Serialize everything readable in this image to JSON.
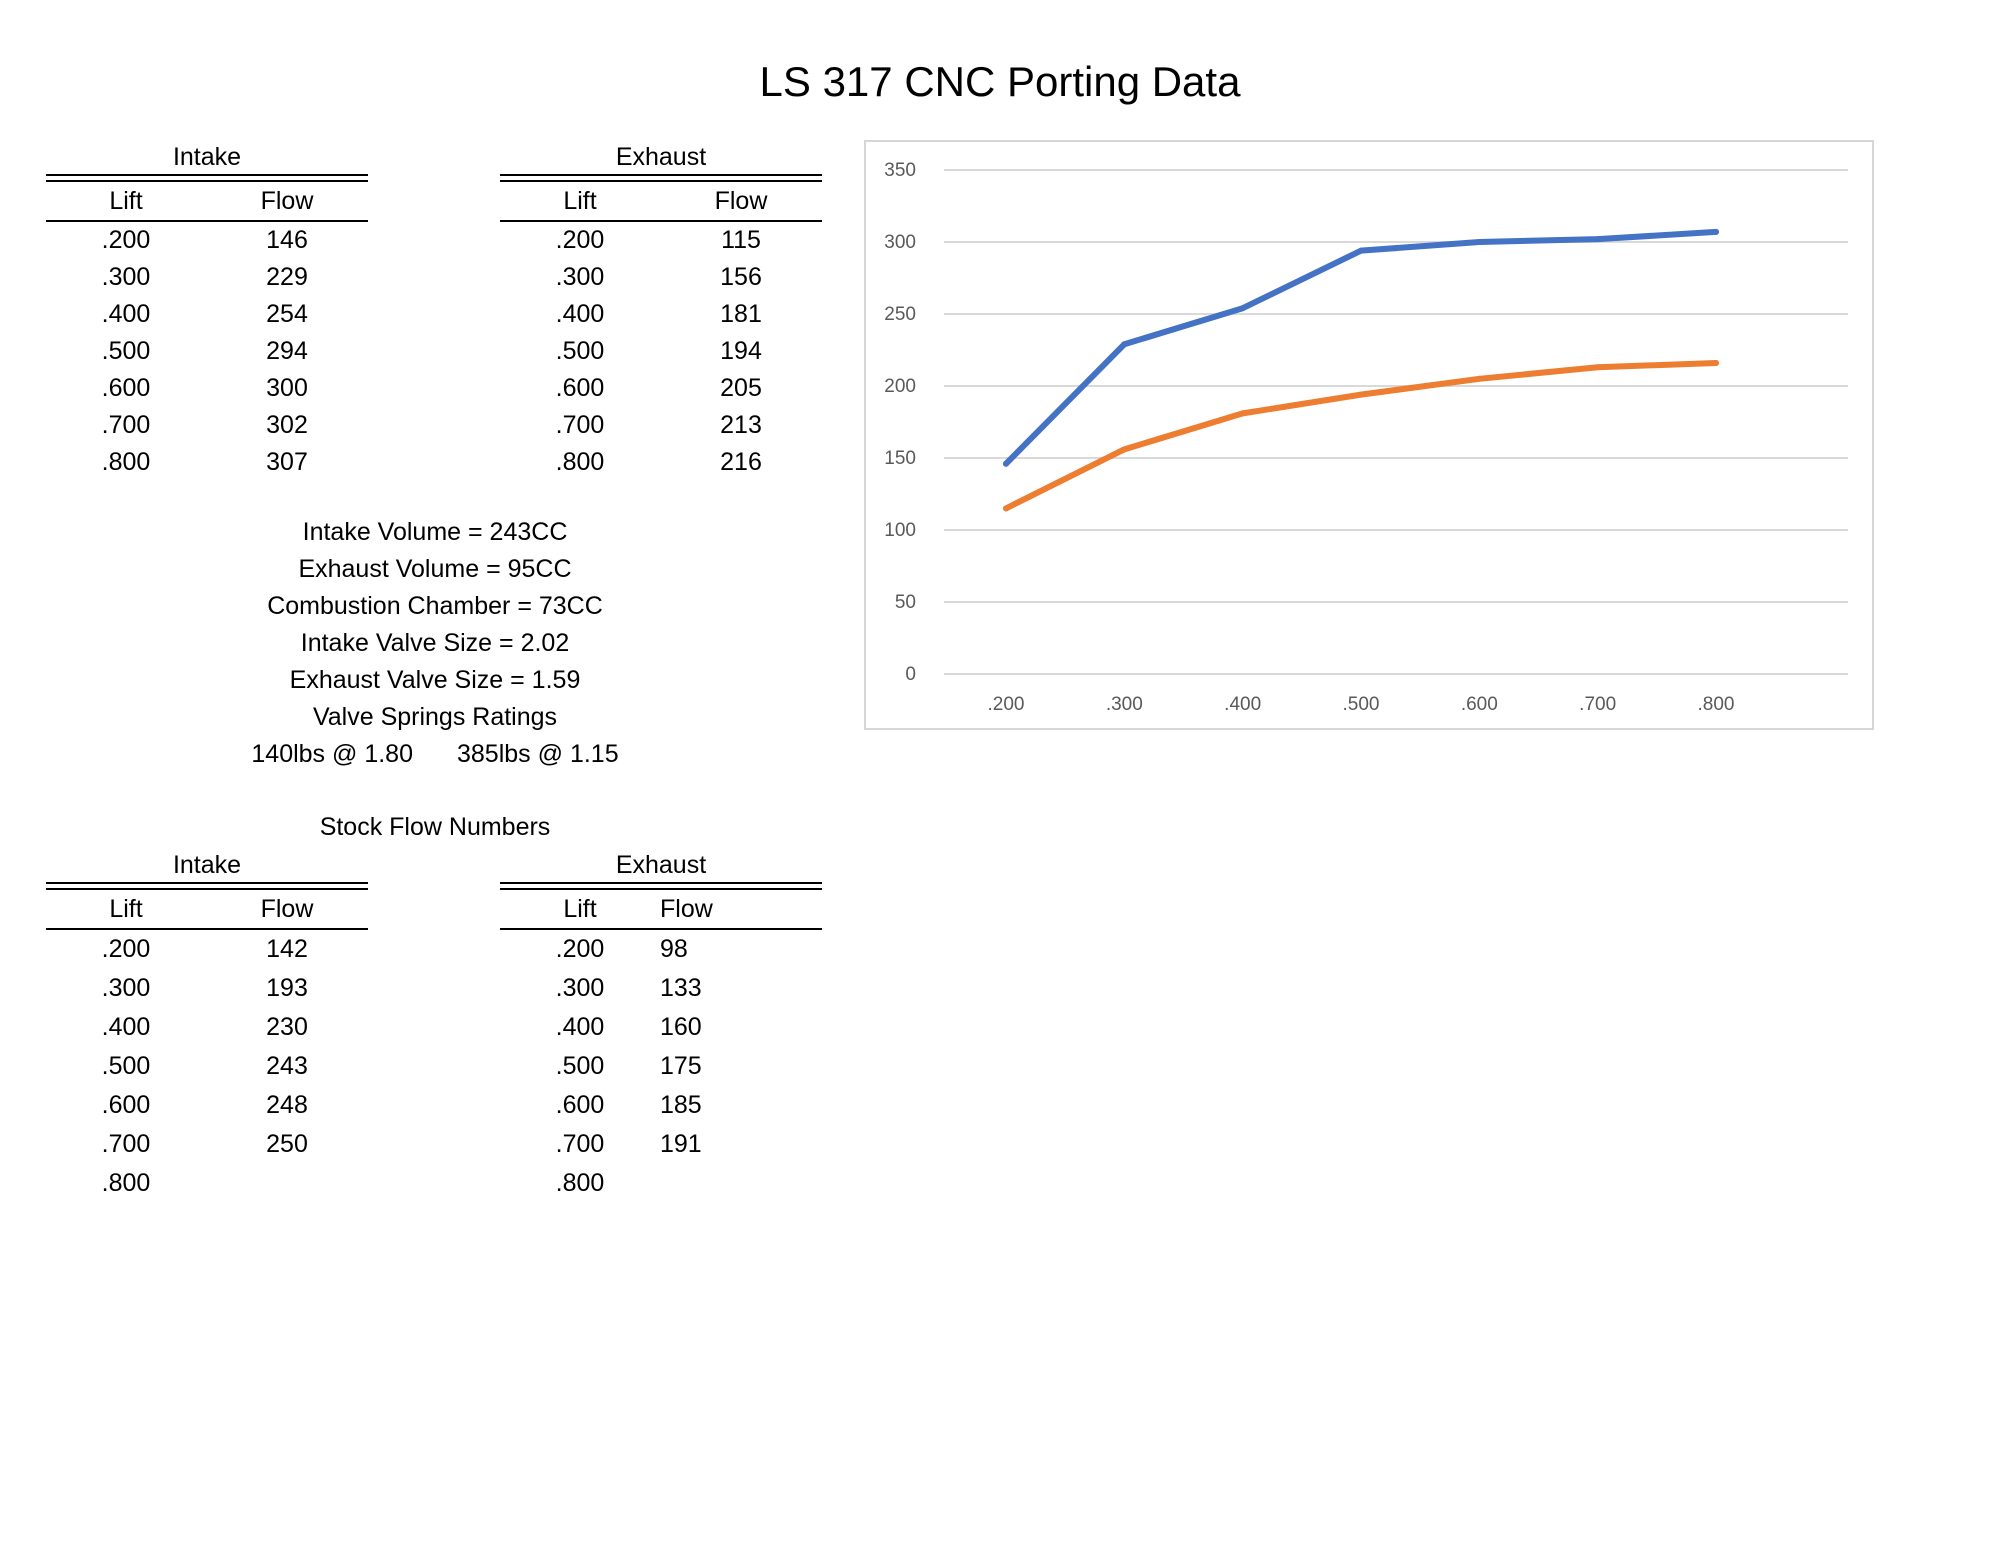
{
  "title": "LS 317 CNC Porting Data",
  "ported": {
    "intake": {
      "caption": "Intake",
      "headers": [
        "Lift",
        "Flow"
      ],
      "rows": [
        [
          ".200",
          "146"
        ],
        [
          ".300",
          "229"
        ],
        [
          ".400",
          "254"
        ],
        [
          ".500",
          "294"
        ],
        [
          ".600",
          "300"
        ],
        [
          ".700",
          "302"
        ],
        [
          ".800",
          "307"
        ]
      ]
    },
    "exhaust": {
      "caption": "Exhaust",
      "headers": [
        "Lift",
        "Flow"
      ],
      "rows": [
        [
          ".200",
          "115"
        ],
        [
          ".300",
          "156"
        ],
        [
          ".400",
          "181"
        ],
        [
          ".500",
          "194"
        ],
        [
          ".600",
          "205"
        ],
        [
          ".700",
          "213"
        ],
        [
          ".800",
          "216"
        ]
      ]
    }
  },
  "specs": {
    "intake_volume": "Intake Volume = 243CC",
    "exhaust_volume": "Exhaust Volume = 95CC",
    "combustion_chamber": "Combustion Chamber = 73CC",
    "intake_valve": "Intake Valve Size = 2.02",
    "exhaust_valve": "Exhaust Valve Size = 1.59",
    "springs_title": "Valve Springs Ratings",
    "spring_seat": "140lbs @ 1.80",
    "spring_open": "385lbs @ 1.15"
  },
  "stock": {
    "title": "Stock Flow Numbers",
    "intake": {
      "caption": "Intake",
      "headers": [
        "Lift",
        "Flow"
      ],
      "rows": [
        [
          ".200",
          "142"
        ],
        [
          ".300",
          "193"
        ],
        [
          ".400",
          "230"
        ],
        [
          ".500",
          "243"
        ],
        [
          ".600",
          "248"
        ],
        [
          ".700",
          "250"
        ],
        [
          ".800",
          ""
        ]
      ]
    },
    "exhaust": {
      "caption": "Exhaust",
      "headers": [
        "Lift",
        "Flow"
      ],
      "rows": [
        [
          ".200",
          "98"
        ],
        [
          ".300",
          "133"
        ],
        [
          ".400",
          "160"
        ],
        [
          ".500",
          "175"
        ],
        [
          ".600",
          "185"
        ],
        [
          ".700",
          "191"
        ],
        [
          ".800",
          ""
        ]
      ]
    }
  },
  "chart_data": {
    "type": "line",
    "categories": [
      ".200",
      ".300",
      ".400",
      ".500",
      ".600",
      ".700",
      ".800"
    ],
    "series": [
      {
        "values": [
          146,
          229,
          254,
          294,
          300,
          302,
          307
        ],
        "color": "#4472C4"
      },
      {
        "values": [
          115,
          156,
          181,
          194,
          205,
          213,
          216
        ],
        "color": "#ED7D31"
      }
    ],
    "ylim": [
      0,
      350
    ],
    "yticks": [
      0,
      50,
      100,
      150,
      200,
      250,
      300,
      350
    ],
    "grid": true,
    "legend": "none"
  }
}
